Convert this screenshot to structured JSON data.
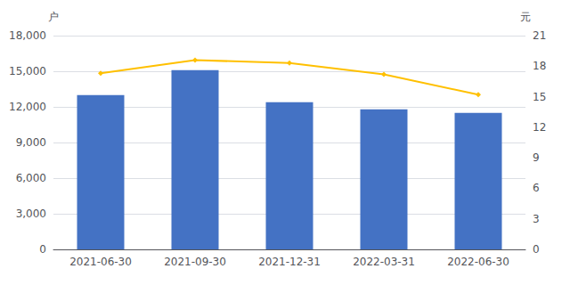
{
  "chart_data": {
    "type": "bar",
    "categories": [
      "2021-06-30",
      "2021-09-30",
      "2021-12-31",
      "2022-03-31",
      "2022-06-30"
    ],
    "series": [
      {
        "type": "bar",
        "color": "#4472C4",
        "values": [
          13000,
          15100,
          12400,
          11800,
          11500
        ]
      },
      {
        "type": "line",
        "color": "#FFC000",
        "marker": "diamond",
        "axis": "y2",
        "values": [
          17.3,
          18.6,
          18.3,
          17.2,
          15.2
        ]
      }
    ],
    "ylabel": "户",
    "y2label": "元",
    "ylim": [
      0,
      18000
    ],
    "yticks": [
      0,
      {
        "value": 3000,
        "label": "3,000"
      },
      {
        "value": 6000,
        "label": "6,000"
      },
      {
        "value": 9000,
        "label": "9,000"
      },
      {
        "value": 12000,
        "label": "12,000"
      },
      {
        "value": 15000,
        "label": "15,000"
      },
      {
        "value": 18000,
        "label": "18,000"
      }
    ],
    "y2lim": [
      0,
      21
    ],
    "y2ticks": [
      0,
      3,
      6,
      9,
      12,
      15,
      18,
      21
    ],
    "grid": true
  }
}
